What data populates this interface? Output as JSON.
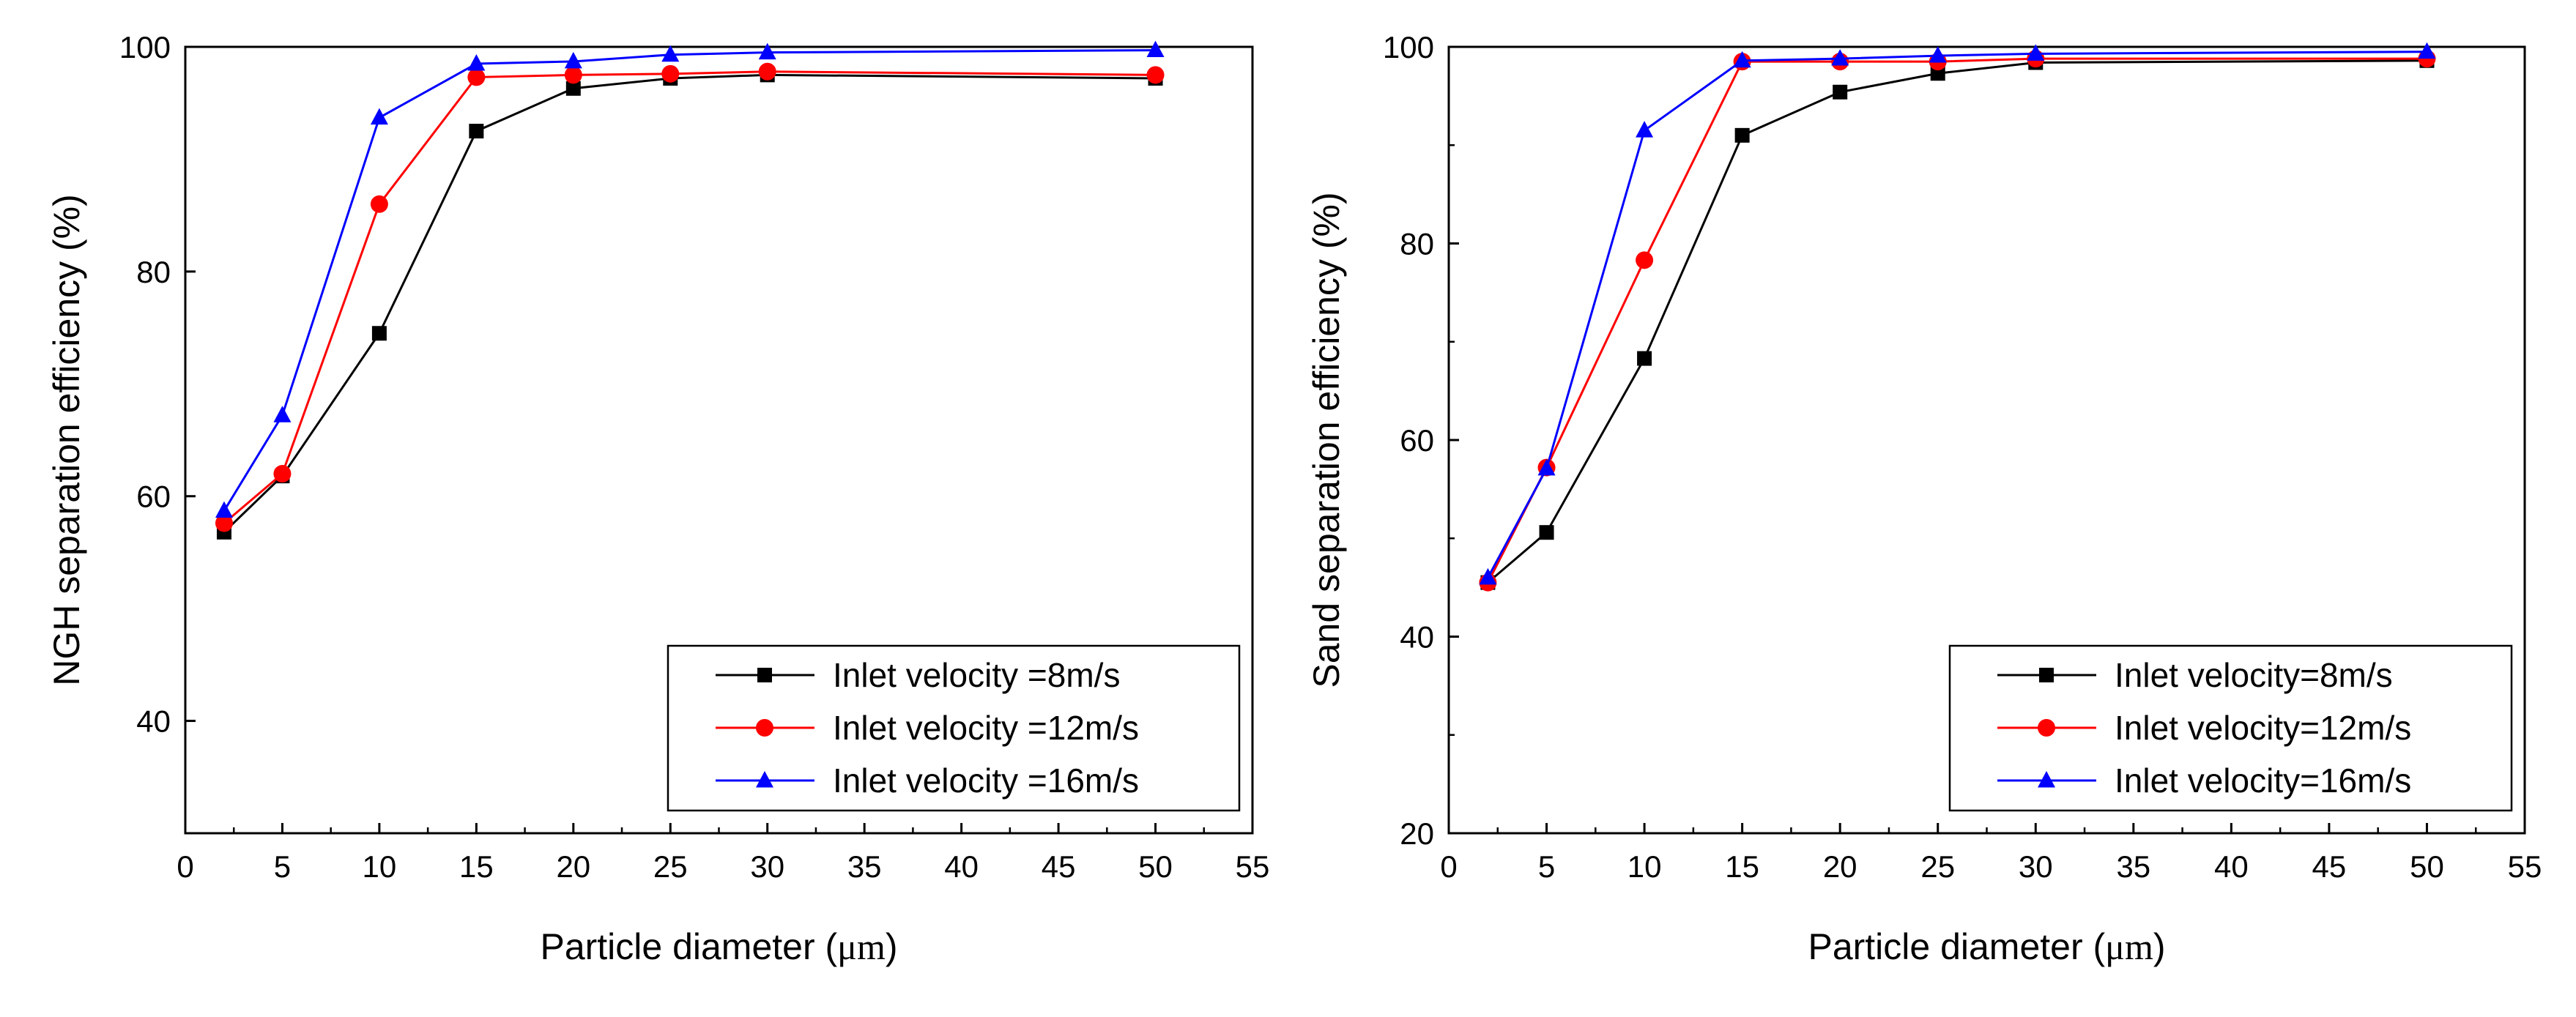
{
  "chart_data": [
    {
      "type": "line",
      "title": "",
      "xlabel_main": "Particle diameter (",
      "xlabel_unit": "μm",
      "xlabel_close": ")",
      "ylabel": "NGH separation efficiency (%)",
      "xlim": [
        0,
        55
      ],
      "ylim": [
        30,
        100
      ],
      "xticks": [
        0,
        5,
        10,
        15,
        20,
        25,
        30,
        35,
        40,
        45,
        50,
        55
      ],
      "yticks": [
        40,
        60,
        80,
        100
      ],
      "grid": false,
      "legend_position": "bottom-right",
      "x": [
        2,
        5,
        10,
        15,
        20,
        25,
        30,
        50
      ],
      "series": [
        {
          "name": "Inlet velocity =8m/s",
          "color": "#000000",
          "marker": "square",
          "values": [
            56.8,
            61.8,
            74.5,
            92.5,
            96.3,
            97.2,
            97.5,
            97.2
          ]
        },
        {
          "name": "Inlet velocity =12m/s",
          "color": "#ff0000",
          "marker": "circle",
          "values": [
            57.6,
            62.0,
            86.0,
            97.3,
            97.5,
            97.6,
            97.8,
            97.5
          ]
        },
        {
          "name": "Inlet velocity =16m/s",
          "color": "#0000ff",
          "marker": "triangle",
          "values": [
            58.7,
            67.2,
            93.7,
            98.5,
            98.7,
            99.3,
            99.5,
            99.7
          ]
        }
      ]
    },
    {
      "type": "line",
      "title": "",
      "xlabel_main": "Particle diameter (",
      "xlabel_unit": "μm",
      "xlabel_close": ")",
      "ylabel": "Sand separation efficiency (%)",
      "xlim": [
        0,
        55
      ],
      "ylim": [
        20,
        100
      ],
      "xticks": [
        0,
        5,
        10,
        15,
        20,
        25,
        30,
        35,
        40,
        45,
        50,
        55
      ],
      "yticks": [
        20,
        40,
        60,
        80,
        100
      ],
      "grid": false,
      "legend_position": "bottom-right",
      "x": [
        2,
        5,
        10,
        15,
        20,
        25,
        30,
        50
      ],
      "series": [
        {
          "name": "Inlet velocity=8m/s",
          "color": "#000000",
          "marker": "square",
          "values": [
            45.5,
            50.6,
            68.3,
            91.0,
            95.4,
            97.3,
            98.4,
            98.6
          ]
        },
        {
          "name": "Inlet velocity=12m/s",
          "color": "#ff0000",
          "marker": "circle",
          "values": [
            45.5,
            57.2,
            78.3,
            98.5,
            98.5,
            98.5,
            98.8,
            98.8
          ]
        },
        {
          "name": "Inlet velocity=16m/s",
          "color": "#0000ff",
          "marker": "triangle",
          "values": [
            46.0,
            57.1,
            91.5,
            98.6,
            98.8,
            99.1,
            99.3,
            99.5
          ]
        }
      ]
    }
  ]
}
